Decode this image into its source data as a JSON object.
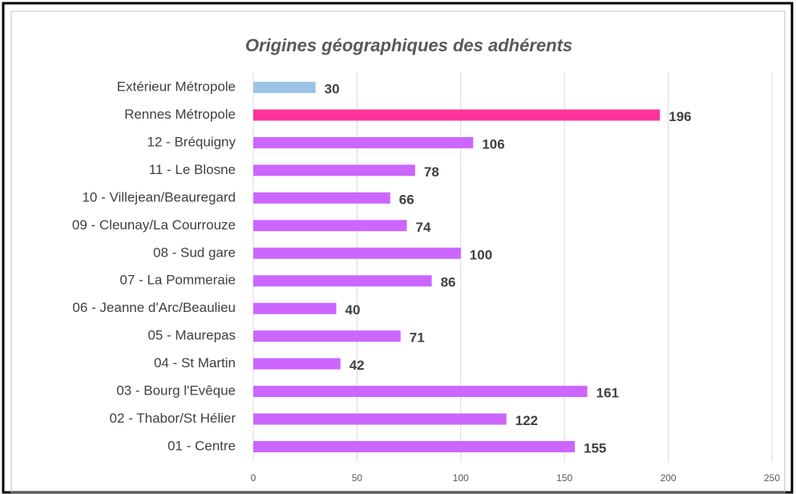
{
  "chart_data": {
    "type": "barh",
    "title": "Origines géographiques des adhérents",
    "categories": [
      "Extérieur Métropole",
      "Rennes Métropole",
      "12 - Bréquigny",
      "11 - Le Blosne",
      "10 - Villejean/Beauregard",
      "09 - Cleunay/La Courrouze",
      "08 - Sud gare",
      "07 - La Pommeraie",
      "06 - Jeanne d'Arc/Beaulieu",
      "05 - Maurepas",
      "04 - St Martin",
      "03 - Bourg l'Evêque",
      "02 - Thabor/St Hélier",
      "01 - Centre"
    ],
    "values": [
      30,
      196,
      106,
      78,
      66,
      74,
      100,
      86,
      40,
      71,
      42,
      161,
      122,
      155
    ],
    "colors": [
      "#9dc3e6",
      "#ff3399",
      "#cc66ff",
      "#cc66ff",
      "#cc66ff",
      "#cc66ff",
      "#cc66ff",
      "#cc66ff",
      "#cc66ff",
      "#cc66ff",
      "#cc66ff",
      "#cc66ff",
      "#cc66ff",
      "#cc66ff"
    ],
    "xlim": [
      0,
      250
    ],
    "xticks": [
      0,
      50,
      100,
      150,
      200,
      250
    ],
    "grid": true
  }
}
